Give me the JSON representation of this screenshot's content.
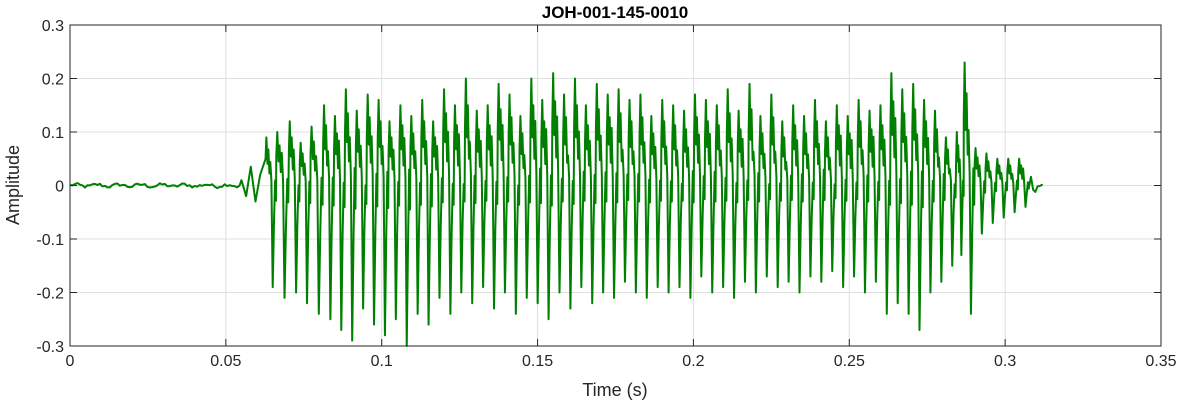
{
  "chart_data": {
    "type": "line",
    "title": "JOH-001-145-0010",
    "xlabel": "Time (s)",
    "ylabel": "Amplitude",
    "xlim": [
      0,
      0.35
    ],
    "ylim": [
      -0.3,
      0.3
    ],
    "xticks": [
      0,
      0.05,
      0.1,
      0.15,
      0.2,
      0.25,
      0.3,
      0.35
    ],
    "xtick_labels": [
      "0",
      "0.05",
      "0.1",
      "0.15",
      "0.2",
      "0.25",
      "0.3",
      "0.35"
    ],
    "yticks": [
      -0.3,
      -0.2,
      -0.1,
      0,
      0.1,
      0.2,
      0.3
    ],
    "ytick_labels": [
      "-0.3",
      "-0.2",
      "-0.1",
      "0",
      "0.1",
      "0.2",
      "0.3"
    ],
    "grid": true,
    "legend": false,
    "series": [
      {
        "color": "#007f00",
        "line_width": 2,
        "x_start": 0,
        "x_end": 0.312,
        "onset_time": 0.055,
        "peak_times": [
          0.063,
          0.0665,
          0.0705,
          0.074,
          0.0775,
          0.0815,
          0.085,
          0.0885,
          0.092,
          0.0955,
          0.099,
          0.1025,
          0.106,
          0.1095,
          0.113,
          0.1165,
          0.12,
          0.1235,
          0.127,
          0.1305,
          0.134,
          0.1375,
          0.141,
          0.1445,
          0.148,
          0.1515,
          0.155,
          0.1585,
          0.162,
          0.1655,
          0.169,
          0.1725,
          0.176,
          0.1795,
          0.183,
          0.1865,
          0.19,
          0.1935,
          0.197,
          0.2005,
          0.204,
          0.2075,
          0.211,
          0.2145,
          0.218,
          0.2215,
          0.225,
          0.2285,
          0.232,
          0.2355,
          0.239,
          0.2425,
          0.246,
          0.2495,
          0.253,
          0.2565,
          0.26,
          0.2635,
          0.267,
          0.2705,
          0.274,
          0.2775,
          0.281,
          0.2845,
          0.287,
          0.2905,
          0.294,
          0.2975,
          0.301,
          0.3045
        ],
        "peak_values": [
          0.09,
          0.1,
          0.12,
          0.08,
          0.11,
          0.15,
          0.13,
          0.18,
          0.14,
          0.17,
          0.16,
          0.12,
          0.15,
          0.13,
          0.16,
          0.12,
          0.18,
          0.15,
          0.2,
          0.14,
          0.15,
          0.19,
          0.17,
          0.13,
          0.2,
          0.16,
          0.21,
          0.17,
          0.2,
          0.15,
          0.19,
          0.17,
          0.18,
          0.16,
          0.17,
          0.13,
          0.16,
          0.15,
          0.14,
          0.17,
          0.16,
          0.15,
          0.18,
          0.14,
          0.19,
          0.13,
          0.17,
          0.12,
          0.15,
          0.13,
          0.16,
          0.12,
          0.15,
          0.13,
          0.16,
          0.14,
          0.15,
          0.21,
          0.18,
          0.19,
          0.16,
          0.14,
          0.09,
          0.1,
          0.23,
          0.07,
          0.06,
          0.05,
          0.05,
          0.05
        ],
        "trough_values": [
          -0.19,
          -0.21,
          -0.2,
          -0.22,
          -0.24,
          -0.25,
          -0.27,
          -0.29,
          -0.23,
          -0.26,
          -0.28,
          -0.25,
          -0.3,
          -0.24,
          -0.26,
          -0.21,
          -0.24,
          -0.2,
          -0.22,
          -0.19,
          -0.23,
          -0.2,
          -0.24,
          -0.21,
          -0.22,
          -0.25,
          -0.2,
          -0.23,
          -0.19,
          -0.22,
          -0.2,
          -0.21,
          -0.18,
          -0.2,
          -0.21,
          -0.19,
          -0.2,
          -0.19,
          -0.21,
          -0.17,
          -0.2,
          -0.19,
          -0.21,
          -0.18,
          -0.2,
          -0.17,
          -0.19,
          -0.18,
          -0.2,
          -0.17,
          -0.18,
          -0.16,
          -0.19,
          -0.17,
          -0.2,
          -0.18,
          -0.24,
          -0.22,
          -0.24,
          -0.27,
          -0.2,
          -0.18,
          -0.15,
          -0.13,
          -0.24,
          -0.09,
          -0.07,
          -0.06,
          -0.05,
          -0.04
        ]
      }
    ]
  }
}
